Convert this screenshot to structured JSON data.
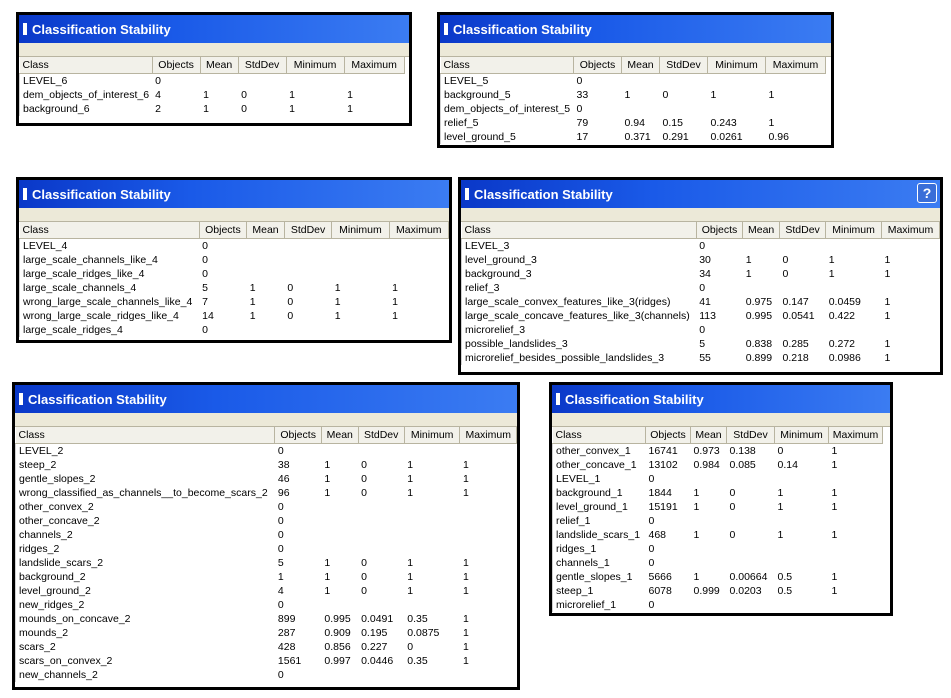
{
  "columns": [
    "Class",
    "Objects",
    "Mean",
    "StdDev",
    "Minimum",
    "Maximum"
  ],
  "windows": [
    {
      "title": "Classification Stability",
      "rows": [
        [
          "LEVEL_6",
          "0",
          "",
          "",
          "",
          ""
        ],
        [
          "dem_objects_of_interest_6",
          "4",
          "1",
          "0",
          "1",
          "1"
        ],
        [
          "background_6",
          "2",
          "1",
          "0",
          "1",
          "1"
        ]
      ]
    },
    {
      "title": "Classification Stability",
      "rows": [
        [
          "LEVEL_5",
          "0",
          "",
          "",
          "",
          ""
        ],
        [
          "background_5",
          "33",
          "1",
          "0",
          "1",
          "1"
        ],
        [
          "dem_objects_of_interest_5",
          "0",
          "",
          "",
          "",
          ""
        ],
        [
          "relief_5",
          "79",
          "0.94",
          "0.15",
          "0.243",
          "1"
        ],
        [
          "level_ground_5",
          "17",
          "0.371",
          "0.291",
          "0.0261",
          "0.96"
        ]
      ]
    },
    {
      "title": "Classification Stability",
      "rows": [
        [
          "LEVEL_4",
          "0",
          "",
          "",
          "",
          ""
        ],
        [
          "large_scale_channels_like_4",
          "0",
          "",
          "",
          "",
          ""
        ],
        [
          "large_scale_ridges_like_4",
          "0",
          "",
          "",
          "",
          ""
        ],
        [
          "large_scale_channels_4",
          "5",
          "1",
          "0",
          "1",
          "1"
        ],
        [
          "wrong_large_scale_channels_like_4",
          "7",
          "1",
          "0",
          "1",
          "1"
        ],
        [
          "wrong_large_scale_ridges_like_4",
          "14",
          "1",
          "0",
          "1",
          "1"
        ],
        [
          "large_scale_ridges_4",
          "0",
          "",
          "",
          "",
          ""
        ]
      ]
    },
    {
      "title": "Classification Stability",
      "help_label": "?",
      "rows": [
        [
          "LEVEL_3",
          "0",
          "",
          "",
          "",
          ""
        ],
        [
          "level_ground_3",
          "30",
          "1",
          "0",
          "1",
          "1"
        ],
        [
          "background_3",
          "34",
          "1",
          "0",
          "1",
          "1"
        ],
        [
          "relief_3",
          "0",
          "",
          "",
          "",
          ""
        ],
        [
          "large_scale_convex_features_like_3(ridges)",
          "41",
          "0.975",
          "0.147",
          "0.0459",
          "1"
        ],
        [
          "large_scale_concave_features_like_3(channels)",
          "113",
          "0.995",
          "0.0541",
          "0.422",
          "1"
        ],
        [
          "microrelief_3",
          "0",
          "",
          "",
          "",
          ""
        ],
        [
          "possible_landslides_3",
          "5",
          "0.838",
          "0.285",
          "0.272",
          "1"
        ],
        [
          "microrelief_besides_possible_landslides_3",
          "55",
          "0.899",
          "0.218",
          "0.0986",
          "1"
        ]
      ]
    },
    {
      "title": "Classification Stability",
      "rows": [
        [
          "LEVEL_2",
          "0",
          "",
          "",
          "",
          ""
        ],
        [
          "steep_2",
          "38",
          "1",
          "0",
          "1",
          "1"
        ],
        [
          "gentle_slopes_2",
          "46",
          "1",
          "0",
          "1",
          "1"
        ],
        [
          "wrong_classified_as_channels__to_become_scars_2",
          "96",
          "1",
          "0",
          "1",
          "1"
        ],
        [
          "other_convex_2",
          "0",
          "",
          "",
          "",
          ""
        ],
        [
          "other_concave_2",
          "0",
          "",
          "",
          "",
          ""
        ],
        [
          "channels_2",
          "0",
          "",
          "",
          "",
          ""
        ],
        [
          "ridges_2",
          "0",
          "",
          "",
          "",
          ""
        ],
        [
          "landslide_scars_2",
          "5",
          "1",
          "0",
          "1",
          "1"
        ],
        [
          "background_2",
          "1",
          "1",
          "0",
          "1",
          "1"
        ],
        [
          "level_ground_2",
          "4",
          "1",
          "0",
          "1",
          "1"
        ],
        [
          "new_ridges_2",
          "0",
          "",
          "",
          "",
          ""
        ],
        [
          "mounds_on_concave_2",
          "899",
          "0.995",
          "0.0491",
          "0.35",
          "1"
        ],
        [
          "mounds_2",
          "287",
          "0.909",
          "0.195",
          "0.0875",
          "1"
        ],
        [
          "scars_2",
          "428",
          "0.856",
          "0.227",
          "0",
          "1"
        ],
        [
          "scars_on_convex_2",
          "1561",
          "0.997",
          "0.0446",
          "0.35",
          "1"
        ],
        [
          "new_channels_2",
          "0",
          "",
          "",
          "",
          ""
        ]
      ]
    },
    {
      "title": "Classification Stability",
      "rows": [
        [
          "other_convex_1",
          "16741",
          "0.973",
          "0.138",
          "0",
          "1"
        ],
        [
          "other_concave_1",
          "13102",
          "0.984",
          "0.085",
          "0.14",
          "1"
        ],
        [
          "LEVEL_1",
          "0",
          "",
          "",
          "",
          ""
        ],
        [
          "background_1",
          "1844",
          "1",
          "0",
          "1",
          "1"
        ],
        [
          "level_ground_1",
          "15191",
          "1",
          "0",
          "1",
          "1"
        ],
        [
          "relief_1",
          "0",
          "",
          "",
          "",
          ""
        ],
        [
          "landslide_scars_1",
          "468",
          "1",
          "0",
          "1",
          "1"
        ],
        [
          "ridges_1",
          "0",
          "",
          "",
          "",
          ""
        ],
        [
          "channels_1",
          "0",
          "",
          "",
          "",
          ""
        ],
        [
          "gentle_slopes_1",
          "5666",
          "1",
          "0.00664",
          "0.5",
          "1"
        ],
        [
          "steep_1",
          "6078",
          "0.999",
          "0.0203",
          "0.5",
          "1"
        ],
        [
          "microrelief_1",
          "0",
          "",
          "",
          "",
          ""
        ]
      ]
    }
  ]
}
